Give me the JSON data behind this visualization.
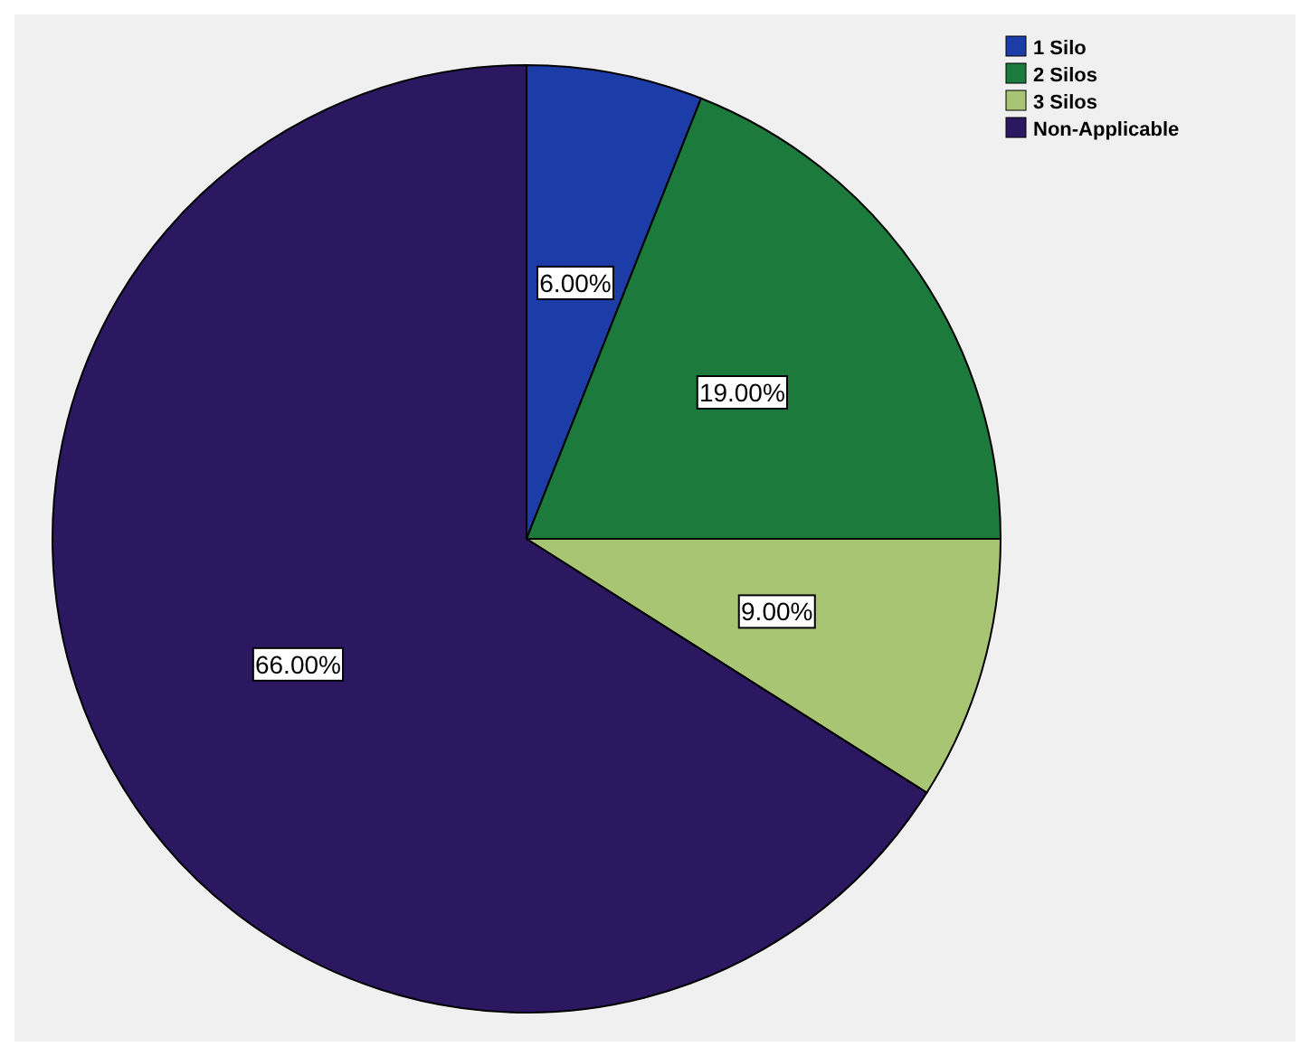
{
  "chart_data": {
    "type": "pie",
    "categories": [
      "1 Silo",
      "2 Silos",
      "3 Silos",
      "Non-Applicable"
    ],
    "values": [
      6,
      19,
      9,
      66
    ],
    "value_labels": [
      "6.00%",
      "19.00%",
      "9.00%",
      "66.00%"
    ],
    "colors": [
      "#1c3ca8",
      "#1b7a3c",
      "#a8c574",
      "#2c1860"
    ],
    "legend": "top right"
  }
}
